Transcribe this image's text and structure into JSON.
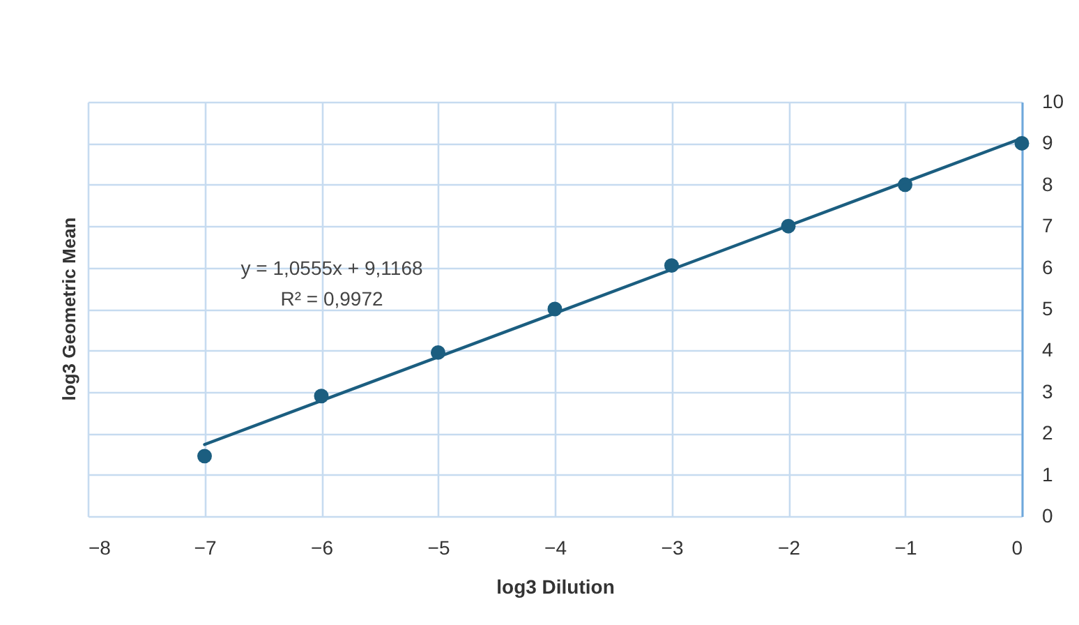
{
  "chart_data": {
    "type": "scatter",
    "xlabel": "log3 Dilution",
    "ylabel": "log3 Geometric Mean",
    "xlim": [
      -8,
      0
    ],
    "xticks": [
      -8,
      -7,
      -6,
      -5,
      -4,
      -3,
      -2,
      -1,
      0
    ],
    "ylim": [
      0,
      10
    ],
    "yticks": [
      0,
      1,
      2,
      3,
      4,
      5,
      6,
      7,
      8,
      9,
      10
    ],
    "grid": true,
    "annotations": [
      "y = 1,0555x + 9,1168",
      "R² = 0,9972"
    ],
    "series": [
      {
        "marker": "circle",
        "color": "#1b5e80",
        "x": [
          -7,
          -6,
          -5,
          -4,
          -3,
          -2,
          -1,
          0
        ],
        "values": [
          1.45,
          2.9,
          3.95,
          5.0,
          6.05,
          7.0,
          8.0,
          9.0
        ]
      },
      {
        "type": "line",
        "color": "#1b5e80",
        "x": [
          -7,
          0
        ],
        "values": [
          1.73,
          9.12
        ]
      }
    ]
  }
}
